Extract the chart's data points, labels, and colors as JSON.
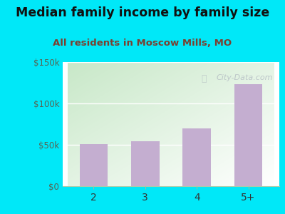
{
  "title": "Median family income by family size",
  "subtitle": "All residents in Moscow Mills, MO",
  "categories": [
    "2",
    "3",
    "4",
    "5+"
  ],
  "values": [
    51000,
    54000,
    70000,
    123000
  ],
  "bar_color": "#c4aed0",
  "title_color": "#111111",
  "subtitle_color": "#7a4030",
  "title_fontsize": 12.5,
  "subtitle_fontsize": 9.5,
  "bg_color": "#00e8f8",
  "ylim": [
    0,
    150000
  ],
  "yticks": [
    0,
    50000,
    100000,
    150000
  ],
  "ytick_labels": [
    "$0",
    "$50k",
    "$100k",
    "$150k"
  ],
  "watermark": "City-Data.com",
  "watermark_color": "#b0b8c0",
  "plot_bg_left_top": "#c8e8c8",
  "plot_bg_right_bottom": "#f8fdf8"
}
